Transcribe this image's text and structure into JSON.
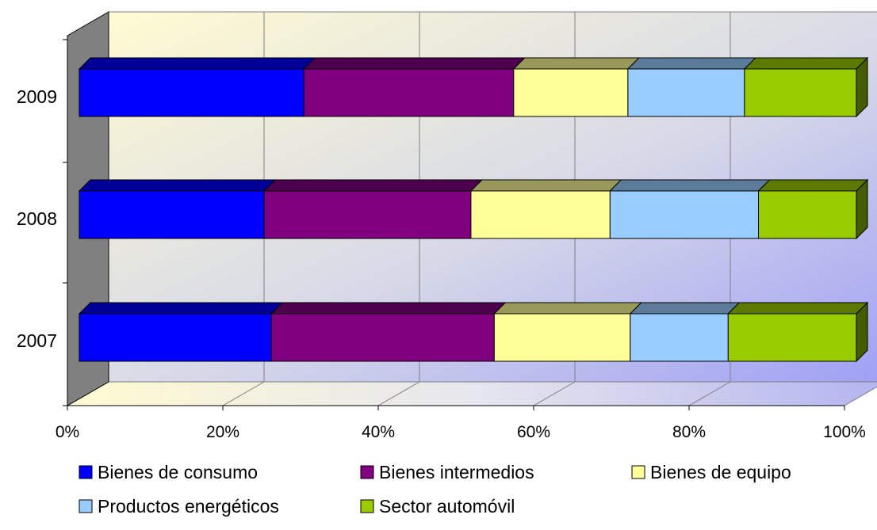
{
  "chart_data": {
    "type": "bar",
    "orientation": "horizontal",
    "stacked": "percent",
    "style": "3d",
    "categories": [
      "2007",
      "2008",
      "2009"
    ],
    "series": [
      {
        "name": "Bienes de consumo",
        "color": "#0000ff",
        "values": [
          24.7,
          23.8,
          28.9
        ]
      },
      {
        "name": "Bienes intermedios",
        "color": "#800080",
        "values": [
          28.7,
          26.6,
          27.0
        ]
      },
      {
        "name": "Bienes de equipo",
        "color": "#ffff99",
        "values": [
          17.5,
          17.9,
          14.7
        ]
      },
      {
        "name": "Productos energéticos",
        "color": "#99ccff",
        "values": [
          12.6,
          19.1,
          15.0
        ]
      },
      {
        "name": "Sector automóvil",
        "color": "#99cc00",
        "values": [
          16.5,
          12.6,
          14.4
        ]
      }
    ],
    "x_ticks": [
      "0%",
      "20%",
      "40%",
      "60%",
      "80%",
      "100%"
    ],
    "xlim": [
      0,
      100
    ],
    "grid": true,
    "legend_position": "bottom"
  }
}
